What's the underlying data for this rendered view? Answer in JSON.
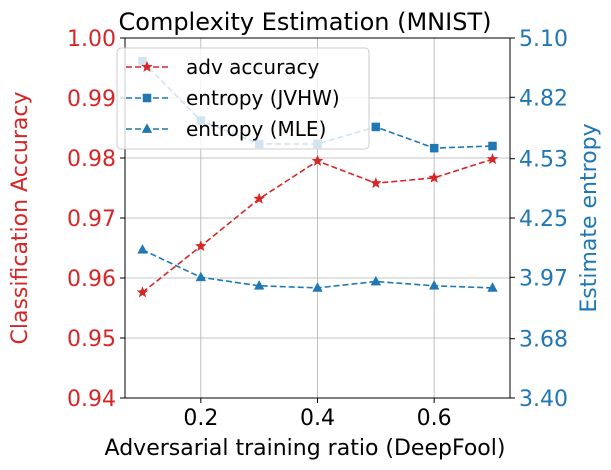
{
  "chart_data": {
    "type": "line",
    "title": "Complexity Estimation (MNIST)",
    "xlabel": "Adversarial training ratio (DeepFool)",
    "ylabel_left": "Classification Accuracy",
    "ylabel_right": "Estimate entropy",
    "x": [
      0.1,
      0.2,
      0.3,
      0.4,
      0.5,
      0.6,
      0.7
    ],
    "xlim": [
      0.07,
      0.73
    ],
    "x_ticks": [
      0.2,
      0.4,
      0.6
    ],
    "x_tick_labels": [
      "0.2",
      "0.4",
      "0.6"
    ],
    "ylim_left": [
      0.94,
      1.0
    ],
    "y_left_ticks": [
      0.94,
      0.95,
      0.96,
      0.97,
      0.98,
      0.99,
      1.0
    ],
    "y_left_tick_labels": [
      "0.94",
      "0.95",
      "0.96",
      "0.97",
      "0.98",
      "0.99",
      "1.00"
    ],
    "ylim_right": [
      3.4,
      5.1
    ],
    "y_right_ticks": [
      3.4,
      3.68,
      3.97,
      4.25,
      4.53,
      4.82,
      5.1
    ],
    "y_right_tick_labels": [
      "3.40",
      "3.68",
      "3.97",
      "4.25",
      "4.53",
      "4.82",
      "5.10"
    ],
    "grid": true,
    "legend_position": "top-left",
    "left_color": "#d62728",
    "right_color": "#1f77b4",
    "series": [
      {
        "name": "adv accuracy",
        "axis": "left",
        "color": "#d62728",
        "marker": "star",
        "values": [
          0.9576,
          0.9653,
          0.9732,
          0.9795,
          0.9758,
          0.9767,
          0.9798
        ]
      },
      {
        "name": "entropy (JVHW)",
        "axis": "right",
        "color": "#1f77b4",
        "marker": "square",
        "values": [
          4.99,
          4.71,
          4.6,
          4.6,
          4.68,
          4.58,
          4.59
        ]
      },
      {
        "name": "entropy (MLE)",
        "axis": "right",
        "color": "#1f77b4",
        "marker": "triangle",
        "values": [
          4.1,
          3.97,
          3.93,
          3.92,
          3.95,
          3.93,
          3.92
        ]
      }
    ]
  }
}
